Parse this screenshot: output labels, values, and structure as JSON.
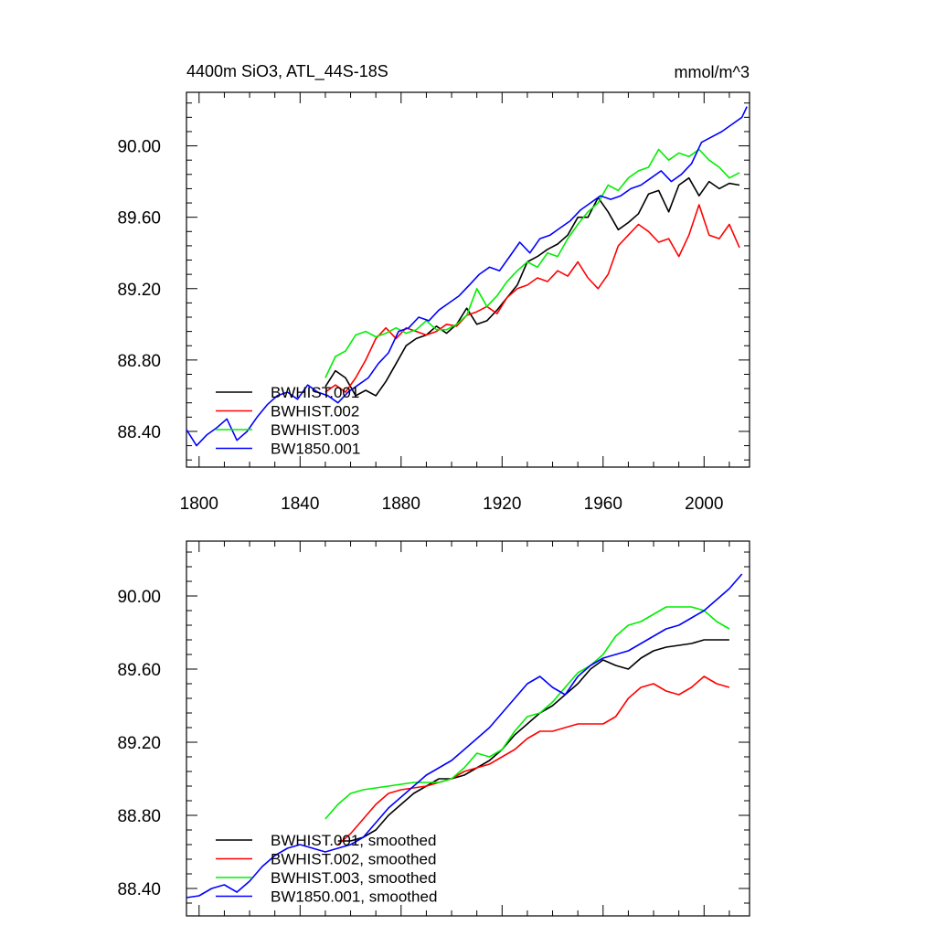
{
  "chart_data": [
    {
      "type": "line",
      "title_left": "4400m SiO3, ATL_44S-18S",
      "title_right": "mmol/m^3",
      "xlim": [
        1795,
        2018
      ],
      "ylim": [
        88.2,
        90.3
      ],
      "x_ticks": [
        1800,
        1840,
        1880,
        1920,
        1960,
        2000
      ],
      "x_tick_labels": [
        "1800",
        "1840",
        "1880",
        "1920",
        "1960",
        "2000"
      ],
      "y_ticks": [
        88.4,
        88.8,
        89.2,
        89.6,
        90.0
      ],
      "y_tick_labels": [
        "88.40",
        "88.80",
        "89.20",
        "89.60",
        "90.00"
      ],
      "legend_position": "lower-left",
      "series": [
        {
          "name": "BWHIST.001",
          "color": "#000000",
          "x": [
            1850,
            1854,
            1858,
            1862,
            1866,
            1870,
            1874,
            1878,
            1882,
            1886,
            1890,
            1894,
            1898,
            1902,
            1906,
            1910,
            1914,
            1918,
            1922,
            1926,
            1930,
            1934,
            1938,
            1942,
            1946,
            1950,
            1954,
            1958,
            1962,
            1966,
            1970,
            1974,
            1978,
            1982,
            1986,
            1990,
            1994,
            1998,
            2002,
            2006,
            2010,
            2014
          ],
          "y": [
            88.65,
            88.74,
            88.7,
            88.6,
            88.63,
            88.6,
            88.68,
            88.78,
            88.88,
            88.92,
            88.94,
            88.99,
            88.95,
            89.0,
            89.09,
            89.0,
            89.02,
            89.08,
            89.15,
            89.22,
            89.35,
            89.38,
            89.42,
            89.45,
            89.5,
            89.6,
            89.6,
            89.71,
            89.63,
            89.53,
            89.57,
            89.62,
            89.73,
            89.75,
            89.63,
            89.78,
            89.82,
            89.72,
            89.8,
            89.76,
            89.79,
            89.78
          ]
        },
        {
          "name": "BWHIST.002",
          "color": "#ff0000",
          "x": [
            1850,
            1854,
            1858,
            1862,
            1866,
            1870,
            1874,
            1878,
            1882,
            1886,
            1890,
            1894,
            1898,
            1902,
            1906,
            1910,
            1914,
            1918,
            1922,
            1926,
            1930,
            1934,
            1938,
            1942,
            1946,
            1950,
            1954,
            1958,
            1962,
            1966,
            1970,
            1974,
            1978,
            1982,
            1986,
            1990,
            1994,
            1998,
            2002,
            2006,
            2010,
            2014
          ],
          "y": [
            88.62,
            88.66,
            88.62,
            88.7,
            88.8,
            88.92,
            88.98,
            88.92,
            88.98,
            88.96,
            88.94,
            88.96,
            89.0,
            88.99,
            89.05,
            89.07,
            89.1,
            89.06,
            89.15,
            89.2,
            89.22,
            89.26,
            89.24,
            89.3,
            89.27,
            89.35,
            89.26,
            89.2,
            89.28,
            89.44,
            89.5,
            89.56,
            89.52,
            89.46,
            89.48,
            89.38,
            89.5,
            89.67,
            89.5,
            89.48,
            89.56,
            89.43
          ]
        },
        {
          "name": "BWHIST.003",
          "color": "#00ee00",
          "x": [
            1850,
            1854,
            1858,
            1862,
            1866,
            1870,
            1874,
            1878,
            1882,
            1886,
            1890,
            1894,
            1898,
            1902,
            1906,
            1910,
            1914,
            1918,
            1922,
            1926,
            1930,
            1934,
            1938,
            1942,
            1946,
            1950,
            1954,
            1958,
            1962,
            1966,
            1970,
            1974,
            1978,
            1982,
            1986,
            1990,
            1994,
            1998,
            2002,
            2006,
            2010,
            2014
          ],
          "y": [
            88.7,
            88.82,
            88.85,
            88.94,
            88.96,
            88.93,
            88.95,
            88.98,
            88.95,
            88.97,
            89.02,
            88.97,
            88.97,
            89.0,
            89.05,
            89.2,
            89.1,
            89.16,
            89.24,
            89.3,
            89.35,
            89.32,
            89.4,
            89.38,
            89.48,
            89.56,
            89.63,
            89.68,
            89.78,
            89.75,
            89.82,
            89.86,
            89.88,
            89.98,
            89.92,
            89.96,
            89.94,
            89.98,
            89.92,
            89.88,
            89.82,
            89.85
          ]
        },
        {
          "name": "BW1850.001",
          "color": "#0000ff",
          "x": [
            1795,
            1799,
            1803,
            1807,
            1811,
            1815,
            1819,
            1823,
            1827,
            1831,
            1835,
            1839,
            1843,
            1847,
            1851,
            1855,
            1859,
            1863,
            1867,
            1871,
            1875,
            1879,
            1883,
            1887,
            1891,
            1895,
            1899,
            1903,
            1907,
            1911,
            1915,
            1919,
            1923,
            1927,
            1931,
            1935,
            1939,
            1943,
            1947,
            1951,
            1955,
            1959,
            1963,
            1967,
            1971,
            1975,
            1979,
            1983,
            1987,
            1991,
            1995,
            1999,
            2003,
            2007,
            2011,
            2015,
            2017
          ],
          "y": [
            88.41,
            88.32,
            88.38,
            88.42,
            88.47,
            88.35,
            88.4,
            88.48,
            88.55,
            88.6,
            88.62,
            88.58,
            88.66,
            88.62,
            88.6,
            88.56,
            88.62,
            88.66,
            88.7,
            88.78,
            88.84,
            88.96,
            88.98,
            89.04,
            89.02,
            89.08,
            89.12,
            89.16,
            89.22,
            89.28,
            89.32,
            89.3,
            89.38,
            89.46,
            89.4,
            89.48,
            89.5,
            89.54,
            89.58,
            89.64,
            89.68,
            89.72,
            89.7,
            89.72,
            89.76,
            89.78,
            89.82,
            89.86,
            89.8,
            89.84,
            89.9,
            90.02,
            90.05,
            90.08,
            90.12,
            90.16,
            90.22
          ]
        }
      ]
    },
    {
      "type": "line",
      "xlim": [
        1795,
        2018
      ],
      "ylim": [
        88.25,
        90.3
      ],
      "x_ticks": [
        1800,
        1840,
        1880,
        1920,
        1960,
        2000
      ],
      "y_ticks": [
        88.4,
        88.8,
        89.2,
        89.6,
        90.0
      ],
      "y_tick_labels": [
        "88.40",
        "88.80",
        "89.20",
        "89.60",
        "90.00"
      ],
      "legend_position": "lower-left",
      "series": [
        {
          "name": "BWHIST.001, smoothed",
          "color": "#000000",
          "x": [
            1855,
            1860,
            1865,
            1870,
            1875,
            1880,
            1885,
            1890,
            1895,
            1900,
            1905,
            1910,
            1915,
            1920,
            1925,
            1930,
            1935,
            1940,
            1945,
            1950,
            1955,
            1960,
            1965,
            1970,
            1975,
            1980,
            1985,
            1990,
            1995,
            2000,
            2005,
            2010
          ],
          "y": [
            88.66,
            88.66,
            88.68,
            88.72,
            88.8,
            88.86,
            88.92,
            88.96,
            89.0,
            89.0,
            89.02,
            89.06,
            89.1,
            89.16,
            89.24,
            89.3,
            89.36,
            89.4,
            89.46,
            89.52,
            89.6,
            89.65,
            89.62,
            89.6,
            89.66,
            89.7,
            89.72,
            89.73,
            89.74,
            89.76,
            89.76,
            89.76
          ]
        },
        {
          "name": "BWHIST.002, smoothed",
          "color": "#ff0000",
          "x": [
            1855,
            1860,
            1865,
            1870,
            1875,
            1880,
            1885,
            1890,
            1895,
            1900,
            1905,
            1910,
            1915,
            1920,
            1925,
            1930,
            1935,
            1940,
            1945,
            1950,
            1955,
            1960,
            1965,
            1970,
            1975,
            1980,
            1985,
            1990,
            1995,
            2000,
            2005,
            2010
          ],
          "y": [
            88.64,
            88.7,
            88.78,
            88.86,
            88.92,
            88.94,
            88.95,
            88.96,
            88.98,
            89.0,
            89.04,
            89.06,
            89.08,
            89.12,
            89.16,
            89.22,
            89.26,
            89.26,
            89.28,
            89.3,
            89.3,
            89.3,
            89.34,
            89.44,
            89.5,
            89.52,
            89.48,
            89.46,
            89.5,
            89.56,
            89.52,
            89.5
          ]
        },
        {
          "name": "BWHIST.003, smoothed",
          "color": "#00ee00",
          "x": [
            1850,
            1855,
            1860,
            1865,
            1870,
            1875,
            1880,
            1885,
            1890,
            1895,
            1900,
            1905,
            1910,
            1915,
            1920,
            1925,
            1930,
            1935,
            1940,
            1945,
            1950,
            1955,
            1960,
            1965,
            1970,
            1975,
            1980,
            1985,
            1990,
            1995,
            2000,
            2005,
            2010
          ],
          "y": [
            88.78,
            88.86,
            88.92,
            88.94,
            88.95,
            88.96,
            88.97,
            88.98,
            88.98,
            88.98,
            89.0,
            89.06,
            89.14,
            89.12,
            89.16,
            89.26,
            89.34,
            89.36,
            89.42,
            89.5,
            89.58,
            89.62,
            89.68,
            89.78,
            89.84,
            89.86,
            89.9,
            89.94,
            89.94,
            89.94,
            89.92,
            89.86,
            89.82
          ]
        },
        {
          "name": "BW1850.001, smoothed",
          "color": "#0000ff",
          "x": [
            1795,
            1800,
            1805,
            1810,
            1815,
            1820,
            1825,
            1830,
            1835,
            1840,
            1845,
            1850,
            1855,
            1860,
            1865,
            1870,
            1875,
            1880,
            1885,
            1890,
            1895,
            1900,
            1905,
            1910,
            1915,
            1920,
            1925,
            1930,
            1935,
            1940,
            1945,
            1950,
            1955,
            1960,
            1965,
            1970,
            1975,
            1980,
            1985,
            1990,
            1995,
            2000,
            2005,
            2010,
            2015
          ],
          "y": [
            88.35,
            88.36,
            88.4,
            88.42,
            88.38,
            88.44,
            88.52,
            88.58,
            88.62,
            88.64,
            88.62,
            88.6,
            88.62,
            88.64,
            88.68,
            88.76,
            88.84,
            88.9,
            88.96,
            89.02,
            89.06,
            89.1,
            89.16,
            89.22,
            89.28,
            89.36,
            89.44,
            89.52,
            89.56,
            89.5,
            89.46,
            89.56,
            89.62,
            89.66,
            89.68,
            89.7,
            89.74,
            89.78,
            89.82,
            89.84,
            89.88,
            89.92,
            89.98,
            90.04,
            90.12
          ]
        }
      ]
    }
  ]
}
